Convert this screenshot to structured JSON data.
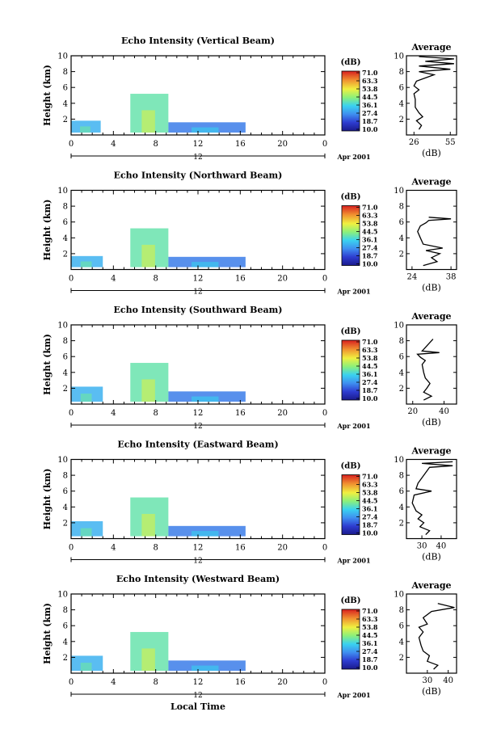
{
  "common": {
    "ylabel": "Height (km)",
    "avg_title": "Average",
    "db_unit": "(dB)",
    "date_label": "Apr 2001",
    "day_label": "12",
    "local_time_label": "Local Time",
    "x_ticks": [
      "0",
      "4",
      "8",
      "12",
      "16",
      "20",
      "0"
    ],
    "y_ticks": [
      "2",
      "4",
      "6",
      "8",
      "10"
    ],
    "colorbar_ticks": [
      "71.0",
      "63.3",
      "53.8",
      "44.5",
      "36.1",
      "27.4",
      "18.7",
      "10.0"
    ]
  },
  "chart_data": [
    {
      "type": "heatmap",
      "title": "Echo Intensity (Vertical Beam)",
      "xlabel": "",
      "ylabel": "Height (km)",
      "xlim": [
        0,
        24
      ],
      "ylim": [
        0,
        10
      ],
      "echo_blocks": [
        {
          "t0": 0.0,
          "t1": 2.8,
          "h0": 0.3,
          "h1": 1.8,
          "level": 0.35
        },
        {
          "t0": 5.6,
          "t1": 9.2,
          "h0": 0.3,
          "h1": 5.2,
          "level": 0.5
        },
        {
          "t0": 9.2,
          "t1": 16.5,
          "h0": 0.3,
          "h1": 1.6,
          "level": 0.25
        }
      ],
      "average": {
        "title": "Average",
        "xlabel": "(dB)",
        "xticks": [
          "26",
          "55"
        ],
        "xlim": [
          20,
          60
        ],
        "profile": [
          [
            30,
            0.7
          ],
          [
            32,
            1.2
          ],
          [
            28,
            1.8
          ],
          [
            33,
            2.3
          ],
          [
            30,
            2.8
          ],
          [
            27,
            3.5
          ],
          [
            27,
            4.5
          ],
          [
            26,
            5.2
          ],
          [
            30,
            5.7
          ],
          [
            26,
            6.2
          ],
          [
            28,
            6.8
          ],
          [
            42,
            7.6
          ],
          [
            30,
            8.0
          ],
          [
            55,
            8.3
          ],
          [
            30,
            8.7
          ],
          [
            58,
            9.0
          ],
          [
            35,
            9.3
          ],
          [
            58,
            9.6
          ],
          [
            30,
            9.9
          ]
        ]
      }
    },
    {
      "type": "heatmap",
      "title": "Echo Intensity (Northward Beam)",
      "xlabel": "",
      "ylabel": "Height (km)",
      "xlim": [
        0,
        24
      ],
      "ylim": [
        0,
        10
      ],
      "echo_blocks": [
        {
          "t0": 0.0,
          "t1": 3.0,
          "h0": 0.3,
          "h1": 1.7,
          "level": 0.35
        },
        {
          "t0": 5.6,
          "t1": 9.2,
          "h0": 0.3,
          "h1": 5.2,
          "level": 0.5
        },
        {
          "t0": 9.2,
          "t1": 16.5,
          "h0": 0.3,
          "h1": 1.6,
          "level": 0.25
        }
      ],
      "average": {
        "title": "Average",
        "xlabel": "(dB)",
        "xticks": [
          "24",
          "38"
        ],
        "xlim": [
          22,
          40
        ],
        "profile": [
          [
            28,
            0.5
          ],
          [
            33,
            1.0
          ],
          [
            31,
            1.5
          ],
          [
            34,
            2.0
          ],
          [
            29,
            2.4
          ],
          [
            35,
            2.7
          ],
          [
            28,
            3.2
          ],
          [
            27,
            4.0
          ],
          [
            26,
            4.8
          ],
          [
            27,
            5.5
          ],
          [
            29,
            5.9
          ],
          [
            30,
            6.2
          ],
          [
            38,
            6.4
          ],
          [
            30,
            6.6
          ]
        ]
      }
    },
    {
      "type": "heatmap",
      "title": "Echo Intensity (Southward Beam)",
      "xlabel": "",
      "ylabel": "Height (km)",
      "xlim": [
        0,
        24
      ],
      "ylim": [
        0,
        10
      ],
      "echo_blocks": [
        {
          "t0": 0.0,
          "t1": 3.0,
          "h0": 0.3,
          "h1": 2.2,
          "level": 0.35
        },
        {
          "t0": 5.6,
          "t1": 9.2,
          "h0": 0.3,
          "h1": 5.2,
          "level": 0.5
        },
        {
          "t0": 9.2,
          "t1": 16.5,
          "h0": 0.3,
          "h1": 1.6,
          "level": 0.25
        }
      ],
      "average": {
        "title": "Average",
        "xlabel": "(dB)",
        "xticks": [
          "20",
          "40"
        ],
        "xlim": [
          16,
          48
        ],
        "profile": [
          [
            27,
            0.5
          ],
          [
            32,
            1.0
          ],
          [
            27,
            1.5
          ],
          [
            29,
            2.0
          ],
          [
            31,
            2.6
          ],
          [
            28,
            3.3
          ],
          [
            27,
            4.0
          ],
          [
            26,
            5.0
          ],
          [
            28,
            5.5
          ],
          [
            25,
            5.9
          ],
          [
            23,
            6.3
          ],
          [
            37,
            6.5
          ],
          [
            26,
            6.7
          ],
          [
            33,
            8.2
          ]
        ]
      }
    },
    {
      "type": "heatmap",
      "title": "Echo Intensity (Eastward Beam)",
      "xlabel": "",
      "ylabel": "Height (km)",
      "xlim": [
        0,
        24
      ],
      "ylim": [
        0,
        10
      ],
      "echo_blocks": [
        {
          "t0": 0.0,
          "t1": 3.0,
          "h0": 0.3,
          "h1": 2.2,
          "level": 0.35
        },
        {
          "t0": 5.6,
          "t1": 9.2,
          "h0": 0.3,
          "h1": 5.2,
          "level": 0.5
        },
        {
          "t0": 9.2,
          "t1": 16.5,
          "h0": 0.3,
          "h1": 1.6,
          "level": 0.25
        }
      ],
      "average": {
        "title": "Average",
        "xlabel": "(dB)",
        "xticks": [
          "30",
          "40"
        ],
        "xlim": [
          22,
          48
        ],
        "profile": [
          [
            32,
            0.5
          ],
          [
            34,
            1.0
          ],
          [
            29,
            1.5
          ],
          [
            31,
            2.0
          ],
          [
            28,
            2.5
          ],
          [
            30,
            3.0
          ],
          [
            27,
            3.5
          ],
          [
            25,
            4.5
          ],
          [
            26,
            5.5
          ],
          [
            35,
            6.0
          ],
          [
            27,
            6.3
          ],
          [
            28,
            7.0
          ],
          [
            34,
            9.0
          ],
          [
            46,
            9.2
          ],
          [
            30,
            9.5
          ],
          [
            46,
            9.7
          ]
        ]
      }
    },
    {
      "type": "heatmap",
      "title": "Echo Intensity (Westward Beam)",
      "xlabel": "",
      "ylabel": "Height (km)",
      "xlim": [
        0,
        24
      ],
      "ylim": [
        0,
        10
      ],
      "echo_blocks": [
        {
          "t0": 0.0,
          "t1": 3.0,
          "h0": 0.3,
          "h1": 2.2,
          "level": 0.35
        },
        {
          "t0": 5.6,
          "t1": 9.2,
          "h0": 0.3,
          "h1": 5.2,
          "level": 0.5
        },
        {
          "t0": 9.2,
          "t1": 16.5,
          "h0": 0.3,
          "h1": 1.6,
          "level": 0.25
        }
      ],
      "average": {
        "title": "Average",
        "xlabel": "(dB)",
        "xticks": [
          "30",
          "40"
        ],
        "xlim": [
          20,
          44
        ],
        "profile": [
          [
            33,
            0.5
          ],
          [
            35,
            1.0
          ],
          [
            30,
            1.5
          ],
          [
            31,
            2.2
          ],
          [
            28,
            2.8
          ],
          [
            27,
            3.5
          ],
          [
            26,
            4.5
          ],
          [
            28,
            5.2
          ],
          [
            26,
            5.8
          ],
          [
            30,
            6.2
          ],
          [
            28,
            7.0
          ],
          [
            32,
            7.8
          ],
          [
            43,
            8.3
          ],
          [
            35,
            8.8
          ]
        ]
      }
    }
  ]
}
